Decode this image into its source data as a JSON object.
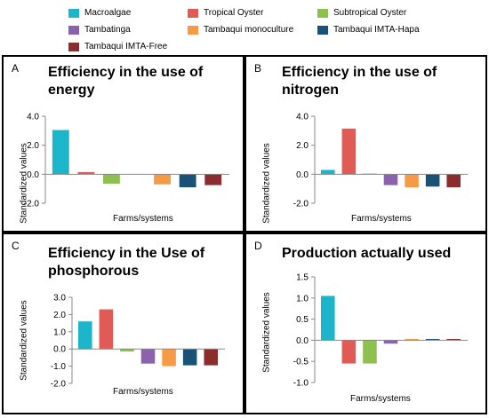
{
  "legend": [
    {
      "name": "Macroalgae",
      "color": "#1CB5C9"
    },
    {
      "name": "Tropical Oyster",
      "color": "#E15A55"
    },
    {
      "name": "Subtropical Oyster",
      "color": "#8DC051"
    },
    {
      "name": "Tambatinga",
      "color": "#8B62AE"
    },
    {
      "name": "Tambaqui monoculture",
      "color": "#F79A46"
    },
    {
      "name": "Tambaqui IMTA-Hapa",
      "color": "#1A5177"
    },
    {
      "name": "Tambaqui IMTA-Free",
      "color": "#8B2D2F"
    }
  ],
  "chart_data": [
    {
      "type": "bar",
      "panel": "A",
      "title": "Efficiency in the use of energy",
      "xlabel": "Farms/systems",
      "ylabel": "Standardized values",
      "ylim": [
        -2.0,
        4.0
      ],
      "yticks": [
        "4.0",
        "2.0",
        "0.0",
        "-2.0"
      ],
      "tick_values": [
        4.0,
        2.0,
        0.0,
        -2.0
      ],
      "categories": [
        "Macroalgae",
        "Tropical Oyster",
        "Subtropical Oyster",
        "Tambatinga",
        "Tambaqui monoculture",
        "Tambaqui IMTA-Hapa",
        "Tambaqui IMTA-Free"
      ],
      "values": [
        3.05,
        0.15,
        -0.65,
        0.0,
        -0.7,
        -0.9,
        -0.75
      ]
    },
    {
      "type": "bar",
      "panel": "B",
      "title": "Efficiency in the use of nitrogen",
      "xlabel": "Farms/systems",
      "ylabel": "Standardized values",
      "ylim": [
        -2.0,
        4.0
      ],
      "yticks": [
        "4.0",
        "2.0",
        "0.0",
        "-2.0"
      ],
      "tick_values": [
        4.0,
        2.0,
        0.0,
        -2.0
      ],
      "categories": [
        "Macroalgae",
        "Tropical Oyster",
        "Subtropical Oyster",
        "Tambatinga",
        "Tambaqui monoculture",
        "Tambaqui IMTA-Hapa",
        "Tambaqui IMTA-Free"
      ],
      "values": [
        0.3,
        3.15,
        0.05,
        -0.75,
        -0.9,
        -0.85,
        -0.9
      ]
    },
    {
      "type": "bar",
      "panel": "C",
      "title": "Efficiency in the Use of phosphorous",
      "xlabel": "Farms/systems",
      "ylabel": "Standardized values",
      "ylim": [
        -2.0,
        3.0
      ],
      "yticks": [
        "3.0",
        "2.0",
        "1.0",
        "0.0",
        "-1.0",
        "-2.0"
      ],
      "tick_values": [
        3.0,
        2.0,
        1.0,
        0.0,
        -1.0,
        -2.0
      ],
      "categories": [
        "Macroalgae",
        "Tropical Oyster",
        "Subtropical Oyster",
        "Tambatinga",
        "Tambaqui monoculture",
        "Tambaqui IMTA-Hapa",
        "Tambaqui IMTA-Free"
      ],
      "values": [
        1.6,
        2.3,
        -0.15,
        -0.85,
        -1.0,
        -0.95,
        -0.95
      ]
    },
    {
      "type": "bar",
      "panel": "D",
      "title": "Production actually used",
      "xlabel": "Farms/systems",
      "ylabel": "Standardized values",
      "ylim": [
        -1.0,
        1.5
      ],
      "yticks": [
        "1.5",
        "1.0",
        "0.5",
        "0.0",
        "-0.5",
        "-1.0"
      ],
      "tick_values": [
        1.5,
        1.0,
        0.5,
        0.0,
        -0.5,
        -1.0
      ],
      "categories": [
        "Macroalgae",
        "Tropical Oyster",
        "Subtropical Oyster",
        "Tambatinga",
        "Tambaqui monoculture",
        "Tambaqui IMTA-Hapa",
        "Tambaqui IMTA-Free"
      ],
      "values": [
        1.05,
        -0.55,
        -0.55,
        -0.08,
        0.03,
        0.03,
        0.03
      ]
    }
  ]
}
